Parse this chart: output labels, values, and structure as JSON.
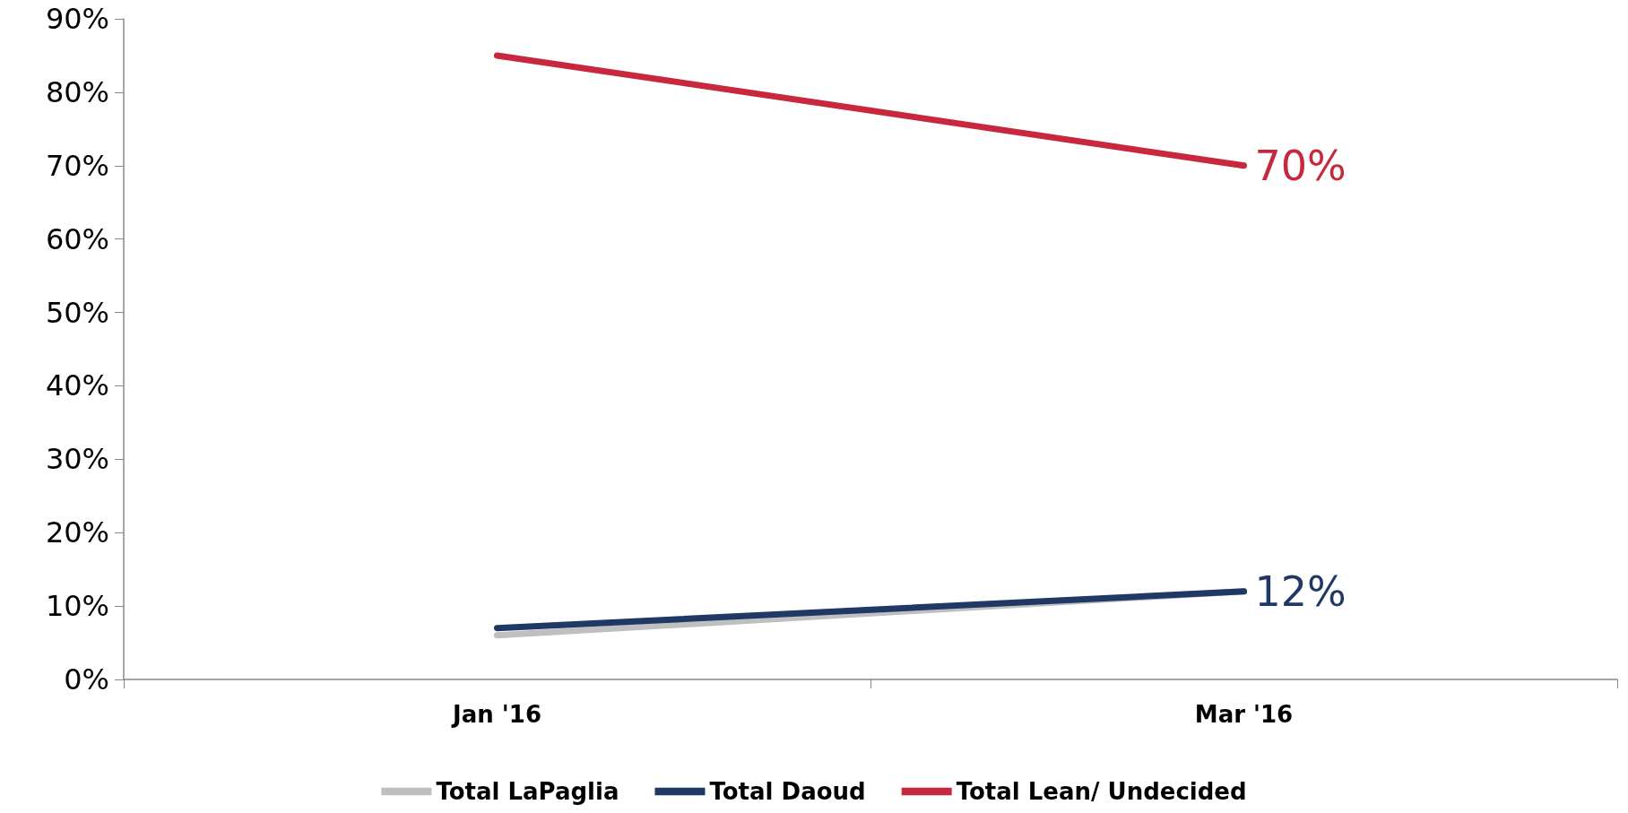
{
  "chart_data": {
    "type": "line",
    "categories": [
      "Jan '16",
      "Mar '16"
    ],
    "series": [
      {
        "name": "Total LaPaglia",
        "color": "#bfbfbf",
        "values": [
          6,
          12
        ]
      },
      {
        "name": "Total Daoud",
        "color": "#1f3864",
        "values": [
          7,
          12
        ],
        "value_labels": [
          null,
          "12%"
        ]
      },
      {
        "name": "Total Lean/ Undecided",
        "color": "#c8283e",
        "values": [
          85,
          70
        ],
        "value_labels": [
          null,
          "70%"
        ]
      }
    ],
    "ylim": [
      0,
      90
    ],
    "yticks": [
      {
        "value": 0,
        "label": "0%"
      },
      {
        "value": 10,
        "label": "10%"
      },
      {
        "value": 20,
        "label": "20%"
      },
      {
        "value": 30,
        "label": "30%"
      },
      {
        "value": 40,
        "label": "40%"
      },
      {
        "value": 50,
        "label": "50%"
      },
      {
        "value": 60,
        "label": "60%"
      },
      {
        "value": 70,
        "label": "70%"
      },
      {
        "value": 80,
        "label": "80%"
      },
      {
        "value": 90,
        "label": "90%"
      }
    ],
    "grid": false,
    "legend": "bottom",
    "marker": "none",
    "line_style": "solid"
  }
}
